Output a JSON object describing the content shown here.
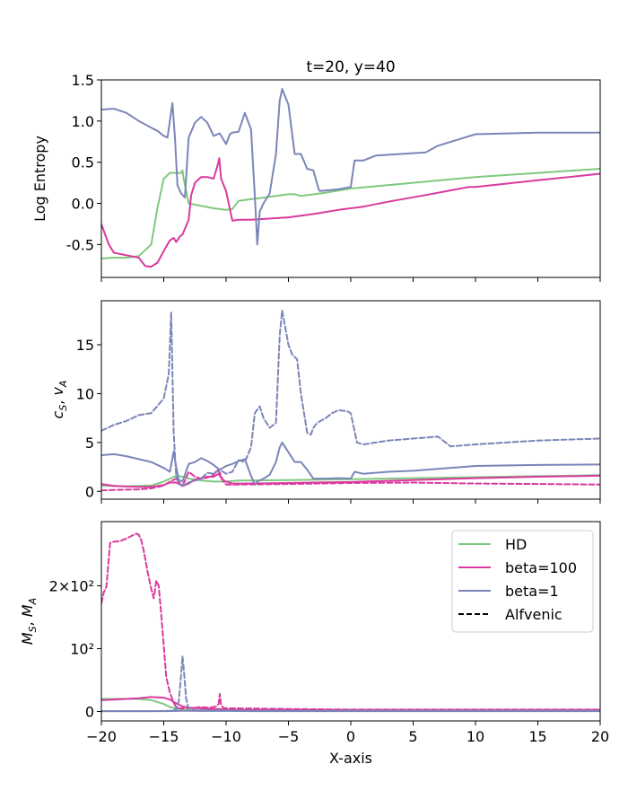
{
  "colors": {
    "HD": "#7fc97f",
    "beta100": "#d93a9e",
    "beta1": "#7b86b8",
    "alfvenic": "#000000"
  },
  "chart_data": [
    {
      "type": "line",
      "title": "t=20, y=40",
      "xlabel": "",
      "ylabel": "Log Entropy",
      "xlim": [
        -20,
        20
      ],
      "ylim": [
        -0.9,
        1.5
      ],
      "yticks": [
        "1.5",
        "1.0",
        "0.5",
        "0.0",
        "-0.5"
      ],
      "ytick_values": [
        1.5,
        1.0,
        0.5,
        0.0,
        -0.5
      ],
      "series": [
        {
          "name": "HD",
          "color_key": "HD",
          "dash": false,
          "x": [
            -20,
            -19,
            -18,
            -17,
            -16,
            -15.5,
            -15,
            -14.5,
            -14,
            -13.6,
            -13.5,
            -13.4,
            -13,
            -12,
            -11,
            -10,
            -9.5,
            -9,
            -8,
            -7,
            -6,
            -5,
            -4.5,
            -4,
            -2,
            0,
            5,
            10,
            15,
            20
          ],
          "y": [
            -0.67,
            -0.66,
            -0.66,
            -0.64,
            -0.5,
            -0.05,
            0.3,
            0.37,
            0.37,
            0.37,
            0.4,
            0.3,
            0.0,
            -0.03,
            -0.06,
            -0.08,
            -0.07,
            0.03,
            0.05,
            0.07,
            0.09,
            0.11,
            0.11,
            0.09,
            0.13,
            0.18,
            0.25,
            0.32,
            0.37,
            0.42
          ]
        },
        {
          "name": "beta=100",
          "color_key": "beta100",
          "dash": false,
          "x": [
            -20,
            -19.7,
            -19.4,
            -19,
            -18,
            -17,
            -16.5,
            -16,
            -15.5,
            -15,
            -14.7,
            -14.5,
            -14.2,
            -14,
            -13.7,
            -13.5,
            -13,
            -12.8,
            -12.5,
            -12,
            -11.5,
            -11,
            -10.7,
            -10.55,
            -10.4,
            -10,
            -9.5,
            -9,
            -8,
            -7,
            -5,
            -3,
            -1,
            1,
            3,
            6,
            9.5,
            10,
            15,
            20
          ],
          "y": [
            -0.25,
            -0.38,
            -0.5,
            -0.6,
            -0.63,
            -0.66,
            -0.76,
            -0.77,
            -0.72,
            -0.58,
            -0.5,
            -0.45,
            -0.42,
            -0.47,
            -0.4,
            -0.38,
            -0.2,
            0.1,
            0.25,
            0.32,
            0.32,
            0.3,
            0.45,
            0.55,
            0.3,
            0.15,
            -0.21,
            -0.2,
            -0.2,
            -0.19,
            -0.17,
            -0.13,
            -0.08,
            -0.04,
            0.02,
            0.1,
            0.2,
            0.2,
            0.28,
            0.36
          ]
        },
        {
          "name": "beta=1",
          "color_key": "beta1",
          "dash": false,
          "x": [
            -20,
            -19,
            -18,
            -17,
            -16,
            -15.5,
            -15,
            -14.7,
            -14.3,
            -14.1,
            -13.9,
            -13.6,
            -13.3,
            -13,
            -12.5,
            -12,
            -11.5,
            -11,
            -10.5,
            -10,
            -9.7,
            -9.5,
            -9,
            -8.5,
            -8,
            -7.7,
            -7.5,
            -7.3,
            -7,
            -6.5,
            -6,
            -5.7,
            -5.5,
            -5,
            -4.5,
            -4,
            -3.5,
            -3,
            -2.6,
            -2.5,
            -1,
            0,
            0.3,
            1,
            2,
            4,
            6,
            7,
            10,
            15,
            20
          ],
          "y": [
            1.14,
            1.15,
            1.1,
            1.0,
            0.92,
            0.88,
            0.82,
            0.8,
            1.22,
            0.8,
            0.22,
            0.12,
            0.07,
            0.8,
            0.98,
            1.05,
            0.98,
            0.82,
            0.85,
            0.72,
            0.84,
            0.86,
            0.87,
            1.1,
            0.9,
            0.1,
            -0.5,
            -0.1,
            0.0,
            0.12,
            0.6,
            1.25,
            1.39,
            1.2,
            0.6,
            0.6,
            0.42,
            0.4,
            0.18,
            0.15,
            0.17,
            0.2,
            0.52,
            0.52,
            0.58,
            0.6,
            0.62,
            0.7,
            0.84,
            0.86,
            0.86
          ]
        }
      ]
    },
    {
      "type": "line",
      "title": "",
      "xlabel": "",
      "ylabel": "c_S, v_A",
      "ylabel_main_1": "c",
      "ylabel_sub_1": "S",
      "ylabel_sep": ", ",
      "ylabel_main_2": "v",
      "ylabel_sub_2": "A",
      "xlim": [
        -20,
        20
      ],
      "ylim": [
        -0.8,
        19.5
      ],
      "yticks": [
        "15",
        "10",
        "5",
        "0"
      ],
      "ytick_values": [
        15,
        10,
        5,
        0
      ],
      "series": [
        {
          "name": "HD c_S",
          "color_key": "HD",
          "dash": false,
          "x": [
            -20,
            -18,
            -16,
            -15,
            -14,
            -13.5,
            -13,
            -12,
            -11,
            -10,
            -9,
            -5,
            0,
            5,
            10,
            15,
            20
          ],
          "y": [
            0.6,
            0.5,
            0.6,
            1.0,
            1.6,
            1.5,
            1.3,
            1.1,
            1.0,
            1.0,
            1.1,
            1.15,
            1.25,
            1.35,
            1.45,
            1.55,
            1.65
          ]
        },
        {
          "name": "beta=100 c_S",
          "color_key": "beta100",
          "dash": false,
          "x": [
            -20,
            -19,
            -17,
            -16,
            -15,
            -14.5,
            -14,
            -13.5,
            -13,
            -12.5,
            -12,
            -11.5,
            -11,
            -10.6,
            -10.5,
            -10.3,
            -10,
            -9.5,
            -9,
            -7,
            -5,
            -3,
            0,
            5,
            10,
            15,
            20
          ],
          "y": [
            0.75,
            0.55,
            0.45,
            0.45,
            0.65,
            0.9,
            0.9,
            0.55,
            0.8,
            1.2,
            1.3,
            1.5,
            1.5,
            1.8,
            1.6,
            1.2,
            1.0,
            0.8,
            0.8,
            0.82,
            0.85,
            0.9,
            0.95,
            1.15,
            1.35,
            1.5,
            1.6
          ]
        },
        {
          "name": "beta=1 c_S",
          "color_key": "beta1",
          "dash": false,
          "x": [
            -20,
            -19,
            -18,
            -17,
            -16,
            -15,
            -14.5,
            -14.2,
            -14,
            -13.8,
            -13.5,
            -13,
            -12.5,
            -12,
            -11.5,
            -11,
            -10.5,
            -10,
            -9.5,
            -9,
            -8.5,
            -8,
            -7.7,
            -7.5,
            -7,
            -6.5,
            -6,
            -5.7,
            -5.5,
            -5,
            -4.5,
            -4,
            -3.5,
            -3,
            -2,
            -1,
            0,
            0.3,
            1,
            3,
            5,
            7,
            10,
            15,
            20
          ],
          "y": [
            3.7,
            3.8,
            3.6,
            3.3,
            3.0,
            2.4,
            2.0,
            4.1,
            2.5,
            1.2,
            1.0,
            2.8,
            3.0,
            3.4,
            3.1,
            2.7,
            2.2,
            2.6,
            2.8,
            3.1,
            3.3,
            1.6,
            0.7,
            1.0,
            1.3,
            1.7,
            3.0,
            4.5,
            5.0,
            4.0,
            3.0,
            3.0,
            2.2,
            1.3,
            1.3,
            1.35,
            1.3,
            2.0,
            1.8,
            2.0,
            2.1,
            2.3,
            2.6,
            2.7,
            2.75
          ]
        },
        {
          "name": "beta=100 v_A",
          "color_key": "beta100",
          "dash": true,
          "x": [
            -20,
            -19,
            -17,
            -16,
            -15,
            -14.5,
            -14,
            -13.5,
            -13,
            -12.5,
            -12,
            -11.5,
            -11,
            -10.7,
            -10.5,
            -10.2,
            -10,
            -9,
            -5,
            0,
            5,
            10,
            15,
            20
          ],
          "y": [
            0.1,
            0.15,
            0.2,
            0.3,
            0.6,
            1.0,
            1.3,
            0.5,
            2.0,
            1.5,
            1.3,
            1.4,
            1.7,
            2.2,
            1.9,
            1.0,
            0.7,
            0.7,
            0.75,
            0.85,
            0.9,
            0.8,
            0.75,
            0.7
          ]
        },
        {
          "name": "beta=1 v_A",
          "color_key": "beta1",
          "dash": true,
          "x": [
            -20,
            -19,
            -18,
            -17,
            -16,
            -15,
            -14.6,
            -14.4,
            -14.2,
            -14,
            -13.8,
            -13.5,
            -13,
            -12.5,
            -12,
            -11.5,
            -11,
            -10.5,
            -10,
            -9.5,
            -9,
            -8.5,
            -8,
            -7.7,
            -7.3,
            -7,
            -6.5,
            -6,
            -5.7,
            -5.5,
            -5,
            -4.7,
            -4.3,
            -4,
            -3.5,
            -3.2,
            -3,
            -2.7,
            -2,
            -1.5,
            -1,
            -0.3,
            0,
            0.5,
            1,
            2,
            3,
            5,
            6,
            7,
            8,
            10,
            15,
            20
          ],
          "y": [
            6.2,
            6.8,
            7.2,
            7.8,
            8.0,
            9.5,
            12.0,
            18.3,
            6.0,
            1.5,
            0.8,
            0.6,
            0.9,
            1.1,
            1.3,
            1.9,
            1.8,
            2.2,
            1.8,
            2.0,
            3.2,
            3.0,
            4.5,
            8.0,
            8.7,
            7.5,
            6.5,
            7.0,
            16.0,
            18.5,
            15.0,
            14.0,
            13.5,
            10.0,
            6.0,
            5.8,
            6.5,
            7.0,
            7.5,
            8.0,
            8.3,
            8.2,
            8.0,
            5.0,
            4.8,
            5.0,
            5.2,
            5.4,
            5.5,
            5.6,
            4.6,
            4.8,
            5.2,
            5.4
          ]
        }
      ]
    },
    {
      "type": "line",
      "title": "",
      "xlabel": "X-axis",
      "ylabel": "M_S, M_A",
      "ylabel_main_1": "M",
      "ylabel_sub_1": "S",
      "ylabel_sep": ", ",
      "ylabel_main_2": "M",
      "ylabel_sub_2": "A",
      "xlim": [
        -20,
        20
      ],
      "ylim": [
        -15,
        302
      ],
      "yticks": [
        "2×10²",
        "10²",
        "0"
      ],
      "ytick_values": [
        200,
        100,
        0
      ],
      "xticks": [
        "−20",
        "−15",
        "−10",
        "−5",
        "0",
        "5",
        "10",
        "15",
        "20"
      ],
      "xtick_values": [
        -20,
        -15,
        -10,
        -5,
        0,
        5,
        10,
        15,
        20
      ],
      "series": [
        {
          "name": "HD M_S",
          "color_key": "HD",
          "dash": false,
          "x": [
            -20,
            -19,
            -18,
            -17,
            -16,
            -15,
            -14.5,
            -14,
            -13.5,
            -13,
            -12,
            -10,
            -5,
            0,
            5,
            10,
            15,
            20
          ],
          "y": [
            20,
            20,
            20,
            20,
            18,
            12,
            7,
            5,
            3,
            2,
            2,
            2,
            1.5,
            1.5,
            1.5,
            1.5,
            1.5,
            1.5
          ]
        },
        {
          "name": "beta=100 M_S",
          "color_key": "beta100",
          "dash": false,
          "x": [
            -20,
            -19,
            -18,
            -17,
            -16,
            -15,
            -14.5,
            -14,
            -13.5,
            -13,
            -12,
            -11,
            -10.5,
            -10,
            -9,
            -5,
            0,
            5,
            10,
            15,
            20
          ],
          "y": [
            18,
            19,
            20,
            21,
            23,
            22,
            19,
            13,
            8,
            6,
            5,
            4,
            4,
            3,
            2.5,
            2.5,
            2.5,
            2.5,
            2.5,
            2.5,
            2.5
          ]
        },
        {
          "name": "beta=1 M_S",
          "color_key": "beta1",
          "dash": false,
          "x": [
            -20,
            -15,
            -14,
            -13.5,
            -13,
            -12,
            -10,
            -8,
            -5,
            0,
            5,
            10,
            15,
            20
          ],
          "y": [
            0.5,
            0.5,
            0.8,
            1.2,
            1.0,
            0.8,
            0.8,
            0.6,
            0.6,
            0.5,
            0.5,
            0.5,
            0.5,
            0.5
          ]
        },
        {
          "name": "beta=100 M_A",
          "color_key": "beta100",
          "dash": true,
          "x": [
            -20,
            -19.8,
            -19.6,
            -19.3,
            -19,
            -18.5,
            -18,
            -17.5,
            -17.2,
            -17,
            -16.8,
            -16.6,
            -16.3,
            -16,
            -15.8,
            -15.6,
            -15.4,
            -15.2,
            -15,
            -14.8,
            -14.5,
            -14.2,
            -14,
            -13.8,
            -13.5,
            -13,
            -12.5,
            -12,
            -11.5,
            -11,
            -10.8,
            -10.6,
            -10.5,
            -10.4,
            -10.2,
            -10,
            -9,
            -5,
            0,
            5,
            10,
            15,
            20
          ],
          "y": [
            172,
            190,
            198,
            268,
            270,
            271,
            275,
            280,
            283,
            281,
            272,
            255,
            223,
            195,
            180,
            208,
            200,
            155,
            105,
            55,
            30,
            14,
            7,
            5,
            5,
            5,
            6,
            7,
            6,
            7,
            8,
            12,
            28,
            10,
            6,
            5,
            5,
            4,
            3,
            3,
            3,
            3,
            3
          ]
        },
        {
          "name": "beta=1 M_A",
          "color_key": "beta1",
          "dash": true,
          "x": [
            -20,
            -16,
            -14.5,
            -14,
            -13.8,
            -13.6,
            -13.5,
            -13.4,
            -13.2,
            -13,
            -12.5,
            -11,
            -10,
            -8,
            -6,
            -3,
            0,
            5,
            10,
            15,
            20
          ],
          "y": [
            0.5,
            0.5,
            1,
            3,
            15,
            60,
            88,
            70,
            20,
            5,
            2,
            1.5,
            1.5,
            1,
            1,
            1,
            1,
            1,
            1,
            1,
            1
          ]
        }
      ]
    }
  ],
  "legend": {
    "position": "upper right of bottom panel",
    "entries": [
      {
        "label": "HD",
        "color_key": "HD",
        "dash": false
      },
      {
        "label": "beta=100",
        "color_key": "beta100",
        "dash": false
      },
      {
        "label": "beta=1",
        "color_key": "beta1",
        "dash": false
      },
      {
        "label": "Alfvenic",
        "color_key": "alfvenic",
        "dash": true
      }
    ]
  }
}
